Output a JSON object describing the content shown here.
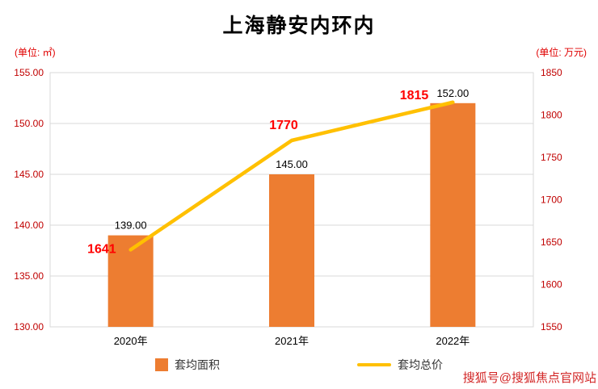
{
  "title": "上海静安内环内",
  "left_unit": "(单位: ㎡)",
  "right_unit": "(单位: 万元)",
  "watermark": "搜狐号@搜狐焦点官网站",
  "colors": {
    "bar": "#ED7D31",
    "line": "#FFC000",
    "axis_text": "#C00000",
    "bar_label": "#000000",
    "category_label": "#000000",
    "line_label": "#FF0000",
    "grid": "#D9D9D9"
  },
  "chart_data": {
    "type": "combo-bar-line",
    "title": "上海静安内环内",
    "categories": [
      "2020年",
      "2021年",
      "2022年"
    ],
    "series": [
      {
        "name": "套均面积",
        "type": "bar",
        "axis": "left",
        "values": [
          139,
          145,
          152
        ],
        "labels": [
          "139.00",
          "145.00",
          "152.00"
        ]
      },
      {
        "name": "套均总价",
        "type": "line",
        "axis": "right",
        "values": [
          1641,
          1770,
          1815
        ],
        "labels": [
          "1641",
          "1770",
          "1815"
        ]
      }
    ],
    "left_axis": {
      "min": 130,
      "max": 155,
      "step": 5,
      "decimals": 2,
      "unit": "㎡"
    },
    "right_axis": {
      "min": 1550,
      "max": 1850,
      "step": 50,
      "decimals": 0,
      "unit": "万元"
    },
    "grid": true,
    "legend_position": "bottom"
  }
}
